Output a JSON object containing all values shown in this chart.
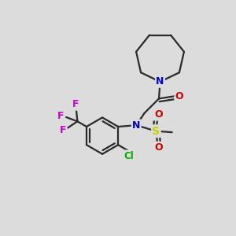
{
  "background_color": "#dcdcdc",
  "atom_colors": {
    "N": "#0000cc",
    "O": "#cc0000",
    "S": "#cccc00",
    "F": "#cc00cc",
    "Cl": "#00aa00",
    "C": "#000000"
  },
  "bond_color": "#2a2a2a",
  "bond_width": 1.6
}
